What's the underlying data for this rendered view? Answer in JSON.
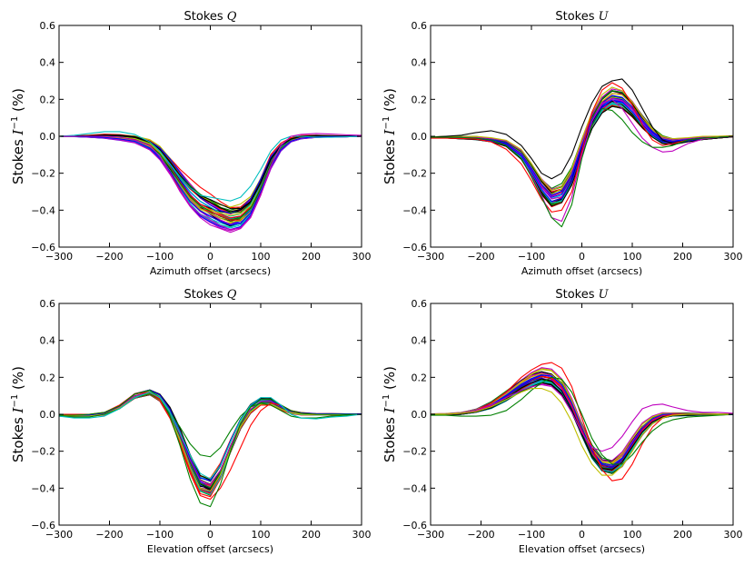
{
  "figure": {
    "palette": [
      "#0000ff",
      "#008000",
      "#ff0000",
      "#00bfbf",
      "#bf00bf",
      "#bfbf00",
      "#000000"
    ]
  },
  "chart_data": [
    {
      "type": "line",
      "title": "Stokes Q",
      "title_prefix": "Stokes ",
      "title_symbol": "Q",
      "xlabel": "Azimuth offset (arcsecs)",
      "ylabel_prefix": "Stokes ",
      "ylabel_symbol": "I",
      "ylabel_sup": "−1",
      "ylabel_suffix": " (%)",
      "xlim": [
        -300,
        300
      ],
      "ylim": [
        -0.6,
        0.6
      ],
      "xticks": [
        -300,
        -200,
        -100,
        0,
        100,
        200,
        300
      ],
      "yticks": [
        -0.6,
        -0.4,
        -0.2,
        0.0,
        0.2,
        0.4,
        0.6
      ],
      "xtick_labels": [
        "−300",
        "−200",
        "−100",
        "0",
        "100",
        "200",
        "300"
      ],
      "ytick_labels": [
        "−0.6",
        "−0.4",
        "−0.2",
        "0.0",
        "0.2",
        "0.4",
        "0.6"
      ],
      "series_count": 36,
      "seed": 11,
      "x": [
        -300,
        -270,
        -240,
        -210,
        -180,
        -150,
        -120,
        -100,
        -80,
        -60,
        -40,
        -20,
        0,
        20,
        40,
        60,
        80,
        100,
        120,
        140,
        160,
        180,
        210,
        240,
        270,
        300
      ],
      "envelope_mean": [
        0.0,
        0.0,
        0.0,
        0.0,
        -0.005,
        -0.015,
        -0.045,
        -0.09,
        -0.16,
        -0.24,
        -0.31,
        -0.36,
        -0.39,
        -0.42,
        -0.44,
        -0.43,
        -0.38,
        -0.27,
        -0.14,
        -0.06,
        -0.02,
        -0.005,
        0.0,
        0.0,
        0.0,
        0.0
      ],
      "envelope_spread": [
        0.0,
        0.002,
        0.005,
        0.01,
        0.015,
        0.02,
        0.03,
        0.04,
        0.05,
        0.06,
        0.07,
        0.07,
        0.07,
        0.07,
        0.07,
        0.07,
        0.06,
        0.05,
        0.04,
        0.02,
        0.01,
        0.008,
        0.006,
        0.004,
        0.003,
        0.0
      ],
      "highlight_series": [
        {
          "color": "#00bfbf",
          "values": [
            0.0,
            0.005,
            0.015,
            0.025,
            0.025,
            0.01,
            -0.03,
            -0.08,
            -0.15,
            -0.22,
            -0.28,
            -0.32,
            -0.33,
            -0.34,
            -0.35,
            -0.33,
            -0.27,
            -0.18,
            -0.08,
            -0.02,
            0.0,
            0.0,
            -0.005,
            -0.005,
            -0.003,
            0.0
          ]
        },
        {
          "color": "#bf00bf",
          "values": [
            0.0,
            0.0,
            0.0,
            0.0,
            -0.005,
            -0.02,
            -0.05,
            -0.11,
            -0.2,
            -0.3,
            -0.38,
            -0.44,
            -0.48,
            -0.5,
            -0.52,
            -0.5,
            -0.44,
            -0.32,
            -0.16,
            -0.05,
            0.0,
            0.01,
            0.015,
            0.012,
            0.008,
            0.005
          ]
        }
      ]
    },
    {
      "type": "line",
      "title": "Stokes U",
      "title_prefix": "Stokes ",
      "title_symbol": "U",
      "xlabel": "Azimuth offset (arcsecs)",
      "ylabel_prefix": "Stokes ",
      "ylabel_symbol": "I",
      "ylabel_sup": "−1",
      "ylabel_suffix": " (%)",
      "xlim": [
        -300,
        300
      ],
      "ylim": [
        -0.6,
        0.6
      ],
      "xticks": [
        -300,
        -200,
        -100,
        0,
        100,
        200,
        300
      ],
      "yticks": [
        -0.6,
        -0.4,
        -0.2,
        0.0,
        0.2,
        0.4,
        0.6
      ],
      "xtick_labels": [
        "−300",
        "−200",
        "−100",
        "0",
        "100",
        "200",
        "300"
      ],
      "ytick_labels": [
        "−0.6",
        "−0.4",
        "−0.2",
        "0.0",
        "0.2",
        "0.4",
        "0.6"
      ],
      "series_count": 36,
      "seed": 23,
      "x": [
        -300,
        -270,
        -240,
        -210,
        -180,
        -150,
        -120,
        -100,
        -80,
        -60,
        -40,
        -20,
        0,
        20,
        40,
        60,
        80,
        100,
        120,
        140,
        160,
        180,
        210,
        240,
        270,
        300
      ],
      "envelope_mean": [
        -0.005,
        -0.005,
        -0.008,
        -0.01,
        -0.02,
        -0.04,
        -0.1,
        -0.18,
        -0.27,
        -0.33,
        -0.31,
        -0.22,
        -0.06,
        0.08,
        0.17,
        0.21,
        0.2,
        0.15,
        0.08,
        0.02,
        -0.02,
        -0.03,
        -0.02,
        -0.01,
        -0.005,
        0.0
      ],
      "envelope_spread": [
        0.002,
        0.004,
        0.006,
        0.008,
        0.01,
        0.015,
        0.025,
        0.035,
        0.045,
        0.05,
        0.05,
        0.045,
        0.04,
        0.04,
        0.045,
        0.05,
        0.05,
        0.045,
        0.035,
        0.025,
        0.02,
        0.015,
        0.01,
        0.008,
        0.005,
        0.003
      ],
      "highlight_series": [
        {
          "color": "#000000",
          "values": [
            -0.005,
            0.0,
            0.005,
            0.02,
            0.03,
            0.01,
            -0.05,
            -0.12,
            -0.2,
            -0.23,
            -0.2,
            -0.1,
            0.05,
            0.18,
            0.27,
            0.3,
            0.31,
            0.25,
            0.15,
            0.05,
            -0.02,
            -0.04,
            -0.02,
            -0.01,
            -0.005,
            0.0
          ]
        },
        {
          "color": "#ff0000",
          "values": [
            -0.01,
            -0.01,
            -0.012,
            -0.015,
            -0.03,
            -0.07,
            -0.15,
            -0.24,
            -0.34,
            -0.41,
            -0.4,
            -0.3,
            -0.08,
            0.13,
            0.25,
            0.29,
            0.26,
            0.17,
            0.06,
            -0.02,
            -0.05,
            -0.04,
            -0.02,
            -0.01,
            -0.005,
            0.0
          ]
        },
        {
          "color": "#bf00bf",
          "values": [
            -0.005,
            -0.005,
            -0.005,
            -0.008,
            -0.02,
            -0.05,
            -0.12,
            -0.21,
            -0.32,
            -0.44,
            -0.46,
            -0.33,
            -0.1,
            0.08,
            0.18,
            0.2,
            0.15,
            0.07,
            -0.01,
            -0.06,
            -0.085,
            -0.08,
            -0.04,
            -0.015,
            -0.005,
            0.0
          ]
        },
        {
          "color": "#008000",
          "values": [
            -0.005,
            -0.005,
            -0.006,
            -0.01,
            -0.02,
            -0.05,
            -0.12,
            -0.22,
            -0.33,
            -0.44,
            -0.49,
            -0.37,
            -0.12,
            0.06,
            0.15,
            0.14,
            0.09,
            0.02,
            -0.03,
            -0.06,
            -0.06,
            -0.05,
            -0.02,
            -0.01,
            -0.005,
            0.0
          ]
        }
      ]
    },
    {
      "type": "line",
      "title": "Stokes Q",
      "title_prefix": "Stokes ",
      "title_symbol": "Q",
      "xlabel": "Elevation offset (arcsecs)",
      "ylabel_prefix": "Stokes ",
      "ylabel_symbol": "I",
      "ylabel_sup": "−1",
      "ylabel_suffix": " (%)",
      "xlim": [
        -300,
        300
      ],
      "ylim": [
        -0.6,
        0.6
      ],
      "xticks": [
        -300,
        -200,
        -100,
        0,
        100,
        200,
        300
      ],
      "yticks": [
        -0.6,
        -0.4,
        -0.2,
        0.0,
        0.2,
        0.4,
        0.6
      ],
      "xtick_labels": [
        "−300",
        "−200",
        "−100",
        "0",
        "100",
        "200",
        "300"
      ],
      "ytick_labels": [
        "−0.6",
        "−0.4",
        "−0.2",
        "0.0",
        "0.2",
        "0.4",
        "0.6"
      ],
      "series_count": 36,
      "seed": 37,
      "x": [
        -300,
        -270,
        -240,
        -210,
        -180,
        -150,
        -120,
        -100,
        -80,
        -60,
        -40,
        -20,
        0,
        20,
        40,
        60,
        80,
        100,
        120,
        140,
        160,
        180,
        210,
        240,
        270,
        300
      ],
      "envelope_mean": [
        -0.005,
        -0.005,
        -0.005,
        0.005,
        0.04,
        0.1,
        0.12,
        0.09,
        0.01,
        -0.11,
        -0.25,
        -0.36,
        -0.38,
        -0.3,
        -0.17,
        -0.05,
        0.03,
        0.07,
        0.07,
        0.04,
        0.015,
        0.005,
        0.0,
        0.0,
        0.0,
        0.0
      ],
      "envelope_spread": [
        0.003,
        0.004,
        0.005,
        0.008,
        0.01,
        0.015,
        0.015,
        0.02,
        0.03,
        0.04,
        0.05,
        0.06,
        0.06,
        0.05,
        0.04,
        0.03,
        0.025,
        0.02,
        0.02,
        0.015,
        0.01,
        0.008,
        0.005,
        0.004,
        0.003,
        0.002
      ],
      "highlight_series": [
        {
          "color": "#008000",
          "values": [
            -0.01,
            -0.015,
            -0.015,
            0.0,
            0.03,
            0.09,
            0.11,
            0.08,
            0.01,
            -0.07,
            -0.16,
            -0.22,
            -0.23,
            -0.18,
            -0.09,
            -0.01,
            0.04,
            0.06,
            0.05,
            0.02,
            -0.01,
            -0.02,
            -0.02,
            -0.01,
            -0.005,
            0.0
          ]
        },
        {
          "color": "#ff0000",
          "values": [
            0.0,
            0.0,
            0.0,
            0.01,
            0.05,
            0.11,
            0.12,
            0.08,
            -0.02,
            -0.16,
            -0.32,
            -0.44,
            -0.46,
            -0.4,
            -0.3,
            -0.18,
            -0.06,
            0.02,
            0.06,
            0.05,
            0.02,
            0.005,
            0.0,
            0.0,
            0.0,
            0.0
          ]
        },
        {
          "color": "#008000",
          "values": [
            -0.005,
            -0.005,
            0.0,
            0.01,
            0.045,
            0.11,
            0.13,
            0.09,
            -0.01,
            -0.17,
            -0.35,
            -0.48,
            -0.5,
            -0.38,
            -0.2,
            -0.05,
            0.04,
            0.08,
            0.08,
            0.05,
            0.02,
            0.005,
            0.0,
            0.0,
            0.0,
            0.0
          ]
        },
        {
          "color": "#00bfbf",
          "values": [
            -0.01,
            -0.02,
            -0.02,
            -0.01,
            0.03,
            0.09,
            0.12,
            0.09,
            0.01,
            -0.1,
            -0.22,
            -0.32,
            -0.35,
            -0.28,
            -0.15,
            -0.03,
            0.05,
            0.09,
            0.09,
            0.05,
            0.0,
            -0.02,
            -0.025,
            -0.015,
            -0.01,
            0.0
          ]
        }
      ]
    },
    {
      "type": "line",
      "title": "Stokes U",
      "title_prefix": "Stokes ",
      "title_symbol": "U",
      "xlabel": "Elevation offset (arcsecs)",
      "ylabel_prefix": "Stokes ",
      "ylabel_symbol": "I",
      "ylabel_sup": "−1",
      "ylabel_suffix": " (%)",
      "xlim": [
        -300,
        300
      ],
      "ylim": [
        -0.6,
        0.6
      ],
      "xticks": [
        -300,
        -200,
        -100,
        0,
        100,
        200,
        300
      ],
      "yticks": [
        -0.6,
        -0.4,
        -0.2,
        0.0,
        0.2,
        0.4,
        0.6
      ],
      "xtick_labels": [
        "−300",
        "−200",
        "−100",
        "0",
        "100",
        "200",
        "300"
      ],
      "ytick_labels": [
        "−0.6",
        "−0.4",
        "−0.2",
        "0.0",
        "0.2",
        "0.4",
        "0.6"
      ],
      "series_count": 36,
      "seed": 53,
      "x": [
        -300,
        -270,
        -240,
        -210,
        -180,
        -150,
        -120,
        -100,
        -80,
        -60,
        -40,
        -20,
        0,
        20,
        40,
        60,
        80,
        100,
        120,
        140,
        160,
        180,
        210,
        240,
        270,
        300
      ],
      "envelope_mean": [
        0.0,
        0.0,
        0.005,
        0.02,
        0.05,
        0.1,
        0.16,
        0.19,
        0.21,
        0.2,
        0.15,
        0.05,
        -0.08,
        -0.2,
        -0.27,
        -0.28,
        -0.24,
        -0.16,
        -0.08,
        -0.03,
        -0.005,
        0.0,
        0.0,
        0.0,
        0.0,
        0.0
      ],
      "envelope_spread": [
        0.002,
        0.004,
        0.006,
        0.01,
        0.02,
        0.03,
        0.035,
        0.04,
        0.04,
        0.04,
        0.04,
        0.04,
        0.04,
        0.04,
        0.04,
        0.04,
        0.04,
        0.035,
        0.03,
        0.02,
        0.015,
        0.01,
        0.008,
        0.005,
        0.003,
        0.002
      ],
      "highlight_series": [
        {
          "color": "#ff0000",
          "values": [
            0.0,
            0.0,
            0.005,
            0.02,
            0.06,
            0.12,
            0.2,
            0.24,
            0.27,
            0.28,
            0.25,
            0.15,
            -0.02,
            -0.18,
            -0.3,
            -0.36,
            -0.35,
            -0.27,
            -0.16,
            -0.07,
            -0.02,
            0.0,
            0.0,
            0.0,
            0.0,
            0.0
          ]
        },
        {
          "color": "#bf00bf",
          "values": [
            0.0,
            0.0,
            0.005,
            0.02,
            0.05,
            0.09,
            0.13,
            0.15,
            0.16,
            0.15,
            0.1,
            0.01,
            -0.1,
            -0.18,
            -0.2,
            -0.18,
            -0.12,
            -0.04,
            0.03,
            0.05,
            0.055,
            0.04,
            0.02,
            0.01,
            0.01,
            0.005
          ]
        },
        {
          "color": "#008000",
          "values": [
            -0.005,
            -0.005,
            -0.01,
            -0.01,
            -0.005,
            0.02,
            0.08,
            0.13,
            0.17,
            0.2,
            0.19,
            0.12,
            0.0,
            -0.13,
            -0.22,
            -0.27,
            -0.27,
            -0.22,
            -0.15,
            -0.09,
            -0.05,
            -0.03,
            -0.015,
            -0.01,
            -0.005,
            0.0
          ]
        },
        {
          "color": "#bfbf00",
          "values": [
            0.0,
            0.0,
            0.005,
            0.015,
            0.04,
            0.08,
            0.12,
            0.14,
            0.14,
            0.12,
            0.06,
            -0.04,
            -0.17,
            -0.27,
            -0.33,
            -0.33,
            -0.28,
            -0.2,
            -0.11,
            -0.05,
            -0.02,
            -0.005,
            0.0,
            0.0,
            0.0,
            0.0
          ]
        }
      ]
    }
  ]
}
